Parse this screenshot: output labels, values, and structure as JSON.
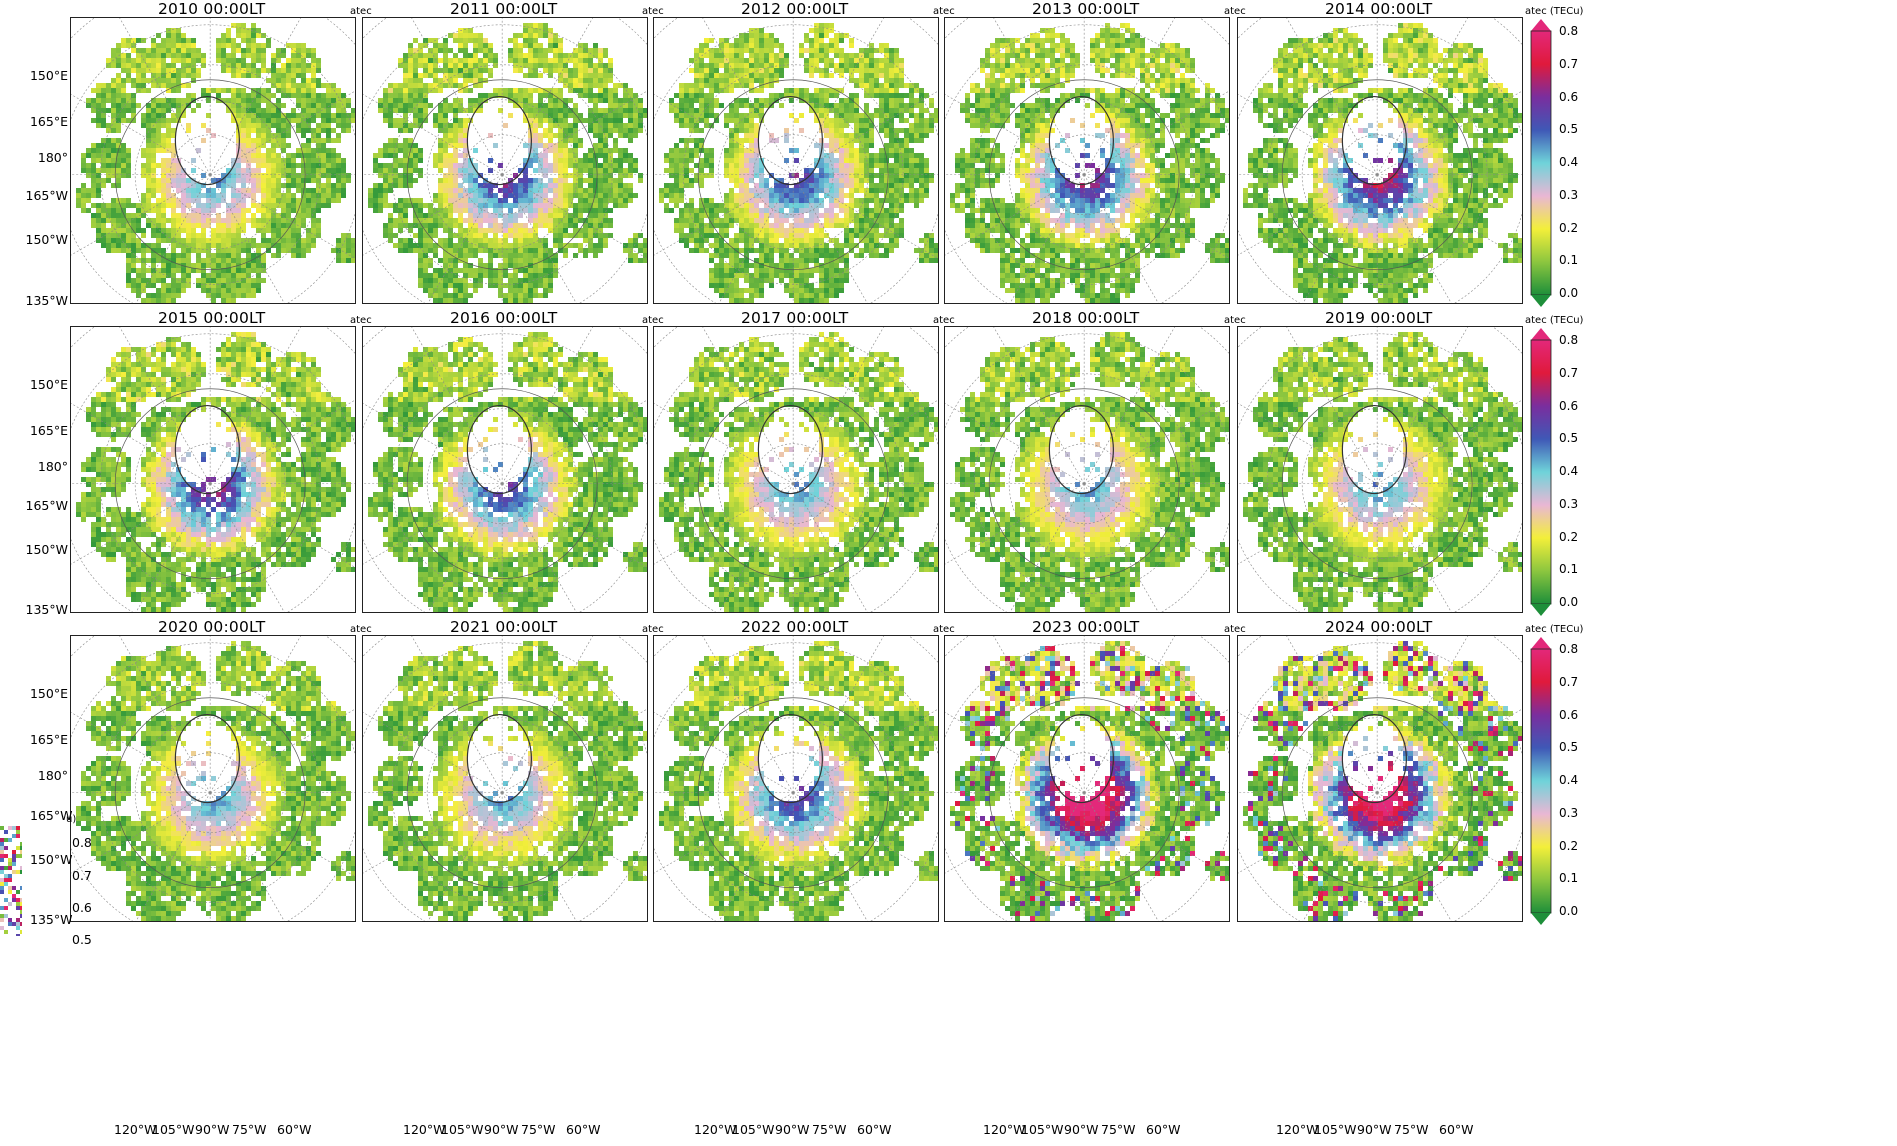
{
  "figure": {
    "panels": [
      {
        "title": "2010 00:00LT",
        "unit": "atec",
        "level": 0.3
      },
      {
        "title": "2011 00:00LT",
        "unit": "atec",
        "level": 0.42
      },
      {
        "title": "2012 00:00LT",
        "unit": "atec",
        "level": 0.4
      },
      {
        "title": "2013 00:00LT",
        "unit": "atec",
        "level": 0.45
      },
      {
        "title": "2014 00:00LT",
        "unit": "atec (TECu)",
        "level": 0.5
      },
      {
        "title": "2015 00:00LT",
        "unit": "atec",
        "level": 0.45
      },
      {
        "title": "2016 00:00LT",
        "unit": "atec",
        "level": 0.4
      },
      {
        "title": "2017 00:00LT",
        "unit": "atec",
        "level": 0.3
      },
      {
        "title": "2018 00:00LT",
        "unit": "atec",
        "level": 0.3
      },
      {
        "title": "2019 00:00LT",
        "unit": "atec (TECu)",
        "level": 0.3
      },
      {
        "title": "2020 00:00LT",
        "unit": "atec",
        "level": 0.3
      },
      {
        "title": "2021 00:00LT",
        "unit": "atec",
        "level": 0.3
      },
      {
        "title": "2022 00:00LT",
        "unit": "atec",
        "level": 0.4
      },
      {
        "title": "2023 00:00LT",
        "unit": "atec",
        "level": 0.75
      },
      {
        "title": "2024 00:00LT",
        "unit": "atec (TECu)",
        "level": 0.7
      }
    ],
    "lat_labels": [
      "150°E",
      "165°E",
      "180°",
      "165°W",
      "150°W",
      "135°W"
    ],
    "lon_labels": [
      "120°W",
      "105°W",
      "90°W",
      "75°W",
      "60°W"
    ],
    "colorbar": {
      "ticks": [
        "0.8",
        "0.7",
        "0.6",
        "0.5",
        "0.4",
        "0.3",
        "0.2",
        "0.1",
        "0.0"
      ],
      "stops": [
        "#1e8f3a",
        "#8cc63f",
        "#f3ef3a",
        "#e9b7d4",
        "#6fd3d9",
        "#3f58b6",
        "#7a2e9e",
        "#e01a3c",
        "#e3287a"
      ]
    },
    "fragment": {
      "lat_labels": [
        "165°W",
        "150°W",
        "135°W"
      ],
      "unit_tail": "u)",
      "ticks": [
        "0.8",
        "0.7",
        "0.6",
        "0.5"
      ]
    }
  }
}
